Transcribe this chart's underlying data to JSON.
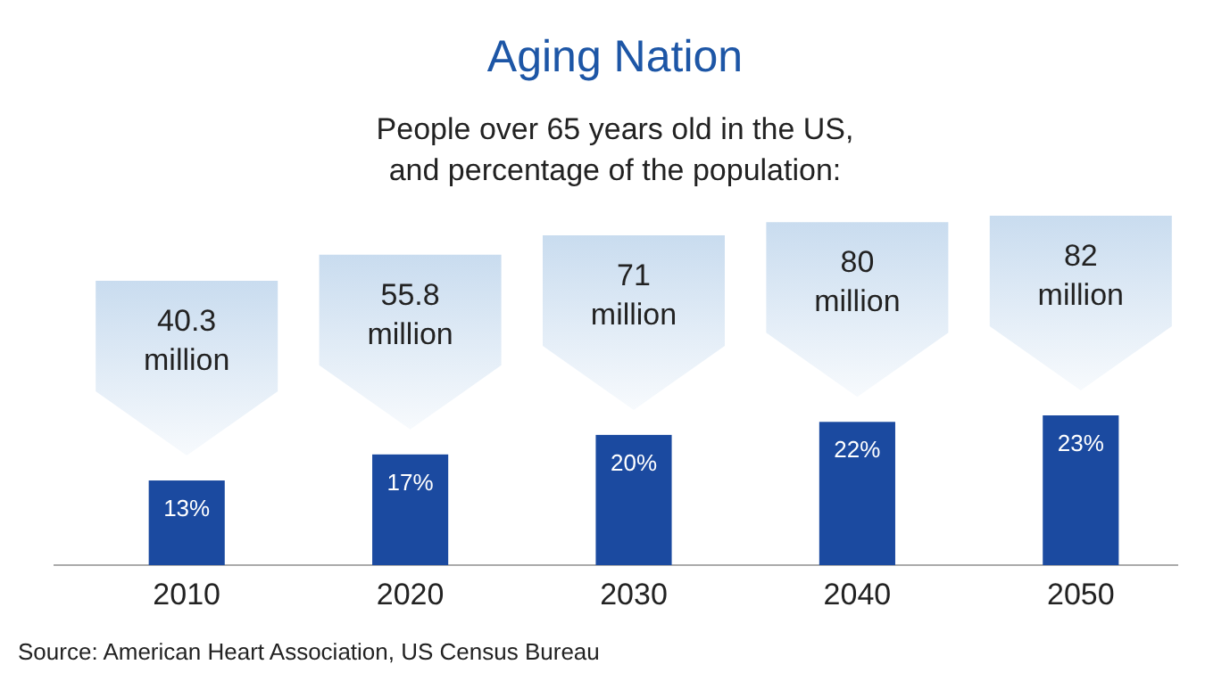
{
  "chart_data": {
    "type": "bar",
    "title": "Aging Nation",
    "subtitle": "People over 65 years old in the US, and percentage of the population:",
    "categories": [
      "2010",
      "2020",
      "2030",
      "2040",
      "2050"
    ],
    "values": [
      13,
      17,
      20,
      22,
      23
    ],
    "value_labels": [
      "13%",
      "17%",
      "20%",
      "22%",
      "23%"
    ],
    "color": "#1b4aa0",
    "annotations": [
      "40.3 million",
      "55.8 million",
      "71 million",
      "80 million",
      "82 million",
      "Source: American Heart Association, US Census Bureau"
    ]
  }
}
